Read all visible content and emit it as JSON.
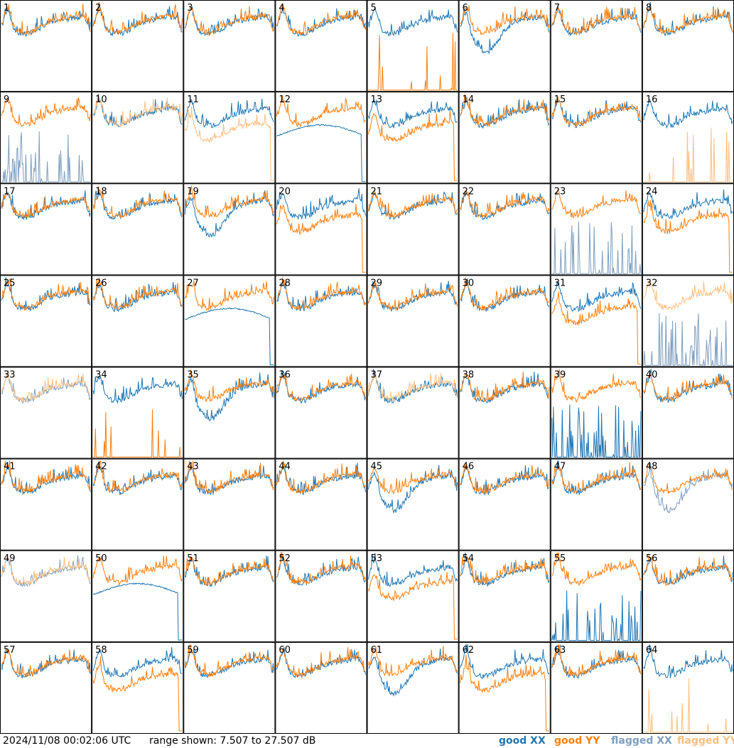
{
  "footer": {
    "timestamp": "2024/11/08 00:02:06 UTC",
    "range": "range shown: 7.507 to 27.507 dB"
  },
  "legend": [
    {
      "label": "good XX",
      "color": "#1f77b4"
    },
    {
      "label": "good YY",
      "color": "#ff7f0e"
    },
    {
      "label": "flagged XX",
      "color": "#7f9fbf"
    },
    {
      "label": "flagged YY",
      "color": "#ffbf80"
    }
  ],
  "chart_data": {
    "type": "line",
    "layout": "small-multiples 8x8",
    "y_range_db": [
      7.507,
      27.507
    ],
    "series_names": [
      "good XX",
      "good YY",
      "flagged XX",
      "flagged YY"
    ],
    "panels": [
      {
        "label": "1",
        "xx": "good",
        "yy": "good",
        "shape": "normal"
      },
      {
        "label": "2",
        "xx": "good",
        "yy": "good",
        "shape": "normal"
      },
      {
        "label": "3",
        "xx": "good",
        "yy": "good",
        "shape": "normal"
      },
      {
        "label": "4",
        "xx": "good",
        "yy": "good",
        "shape": "normal"
      },
      {
        "label": "5",
        "xx": "good",
        "yy": "good",
        "shape": "spiky_yy"
      },
      {
        "label": "6",
        "xx": "good",
        "yy": "good",
        "shape": "dip_xx"
      },
      {
        "label": "7",
        "xx": "good",
        "yy": "good",
        "shape": "normal"
      },
      {
        "label": "8",
        "xx": "good",
        "yy": "good",
        "shape": "normal"
      },
      {
        "label": "9",
        "xx": "flagged",
        "yy": "good",
        "shape": "spiky_xx"
      },
      {
        "label": "10",
        "xx": "good",
        "yy": "flagged",
        "shape": "normal"
      },
      {
        "label": "11",
        "xx": "good",
        "yy": "flagged",
        "shape": "low_yy"
      },
      {
        "label": "12",
        "xx": "good",
        "yy": "good",
        "shape": "arc_xx"
      },
      {
        "label": "13",
        "xx": "good",
        "yy": "good",
        "shape": "low_yy"
      },
      {
        "label": "14",
        "xx": "good",
        "yy": "good",
        "shape": "normal"
      },
      {
        "label": "15",
        "xx": "good",
        "yy": "good",
        "shape": "normal"
      },
      {
        "label": "16",
        "xx": "good",
        "yy": "flagged",
        "shape": "spiky_yy"
      },
      {
        "label": "17",
        "xx": "good",
        "yy": "good",
        "shape": "normal"
      },
      {
        "label": "18",
        "xx": "good",
        "yy": "good",
        "shape": "normal"
      },
      {
        "label": "19",
        "xx": "good",
        "yy": "good",
        "shape": "dip_xx"
      },
      {
        "label": "20",
        "xx": "good",
        "yy": "good",
        "shape": "low_yy"
      },
      {
        "label": "21",
        "xx": "good",
        "yy": "good",
        "shape": "normal"
      },
      {
        "label": "22",
        "xx": "good",
        "yy": "good",
        "shape": "normal"
      },
      {
        "label": "23",
        "xx": "flagged",
        "yy": "good",
        "shape": "spiky_xx"
      },
      {
        "label": "24",
        "xx": "good",
        "yy": "good",
        "shape": "low_yy"
      },
      {
        "label": "25",
        "xx": "good",
        "yy": "good",
        "shape": "normal"
      },
      {
        "label": "26",
        "xx": "good",
        "yy": "good",
        "shape": "normal"
      },
      {
        "label": "27",
        "xx": "good",
        "yy": "good",
        "shape": "arc_xx"
      },
      {
        "label": "28",
        "xx": "good",
        "yy": "good",
        "shape": "normal"
      },
      {
        "label": "29",
        "xx": "good",
        "yy": "good",
        "shape": "normal"
      },
      {
        "label": "30",
        "xx": "good",
        "yy": "good",
        "shape": "normal"
      },
      {
        "label": "31",
        "xx": "good",
        "yy": "good",
        "shape": "low_yy"
      },
      {
        "label": "32",
        "xx": "flagged",
        "yy": "flagged",
        "shape": "spiky_xx"
      },
      {
        "label": "33",
        "xx": "flagged",
        "yy": "flagged",
        "shape": "normal"
      },
      {
        "label": "34",
        "xx": "good",
        "yy": "good",
        "shape": "spiky_yy"
      },
      {
        "label": "35",
        "xx": "good",
        "yy": "good",
        "shape": "dip_xx"
      },
      {
        "label": "36",
        "xx": "good",
        "yy": "good",
        "shape": "normal"
      },
      {
        "label": "37",
        "xx": "good",
        "yy": "flagged",
        "shape": "normal"
      },
      {
        "label": "38",
        "xx": "good",
        "yy": "good",
        "shape": "normal"
      },
      {
        "label": "39",
        "xx": "good",
        "yy": "good",
        "shape": "spiky_xx"
      },
      {
        "label": "40",
        "xx": "good",
        "yy": "good",
        "shape": "normal"
      },
      {
        "label": "41",
        "xx": "good",
        "yy": "good",
        "shape": "normal"
      },
      {
        "label": "42",
        "xx": "good",
        "yy": "good",
        "shape": "normal"
      },
      {
        "label": "43",
        "xx": "good",
        "yy": "good",
        "shape": "normal"
      },
      {
        "label": "44",
        "xx": "good",
        "yy": "good",
        "shape": "normal"
      },
      {
        "label": "45",
        "xx": "good",
        "yy": "good",
        "shape": "dip_xx"
      },
      {
        "label": "46",
        "xx": "good",
        "yy": "good",
        "shape": "normal"
      },
      {
        "label": "47",
        "xx": "good",
        "yy": "good",
        "shape": "normal"
      },
      {
        "label": "48",
        "xx": "flagged",
        "yy": "good",
        "shape": "dip_xx"
      },
      {
        "label": "49",
        "xx": "flagged",
        "yy": "flagged",
        "shape": "normal"
      },
      {
        "label": "50",
        "xx": "good",
        "yy": "good",
        "shape": "arc_xx"
      },
      {
        "label": "51",
        "xx": "good",
        "yy": "good",
        "shape": "normal"
      },
      {
        "label": "52",
        "xx": "good",
        "yy": "good",
        "shape": "normal"
      },
      {
        "label": "53",
        "xx": "good",
        "yy": "good",
        "shape": "low_yy"
      },
      {
        "label": "54",
        "xx": "good",
        "yy": "good",
        "shape": "normal"
      },
      {
        "label": "55",
        "xx": "good",
        "yy": "good",
        "shape": "spiky_xx"
      },
      {
        "label": "56",
        "xx": "good",
        "yy": "good",
        "shape": "normal"
      },
      {
        "label": "57",
        "xx": "good",
        "yy": "good",
        "shape": "normal"
      },
      {
        "label": "58",
        "xx": "good",
        "yy": "good",
        "shape": "low_yy"
      },
      {
        "label": "59",
        "xx": "good",
        "yy": "good",
        "shape": "normal"
      },
      {
        "label": "60",
        "xx": "good",
        "yy": "good",
        "shape": "normal"
      },
      {
        "label": "61",
        "xx": "good",
        "yy": "good",
        "shape": "dip_xx"
      },
      {
        "label": "62",
        "xx": "good",
        "yy": "good",
        "shape": "low_yy"
      },
      {
        "label": "63",
        "xx": "good",
        "yy": "good",
        "shape": "normal"
      },
      {
        "label": "64",
        "xx": "good",
        "yy": "flagged",
        "shape": "spiky_yy"
      }
    ]
  }
}
